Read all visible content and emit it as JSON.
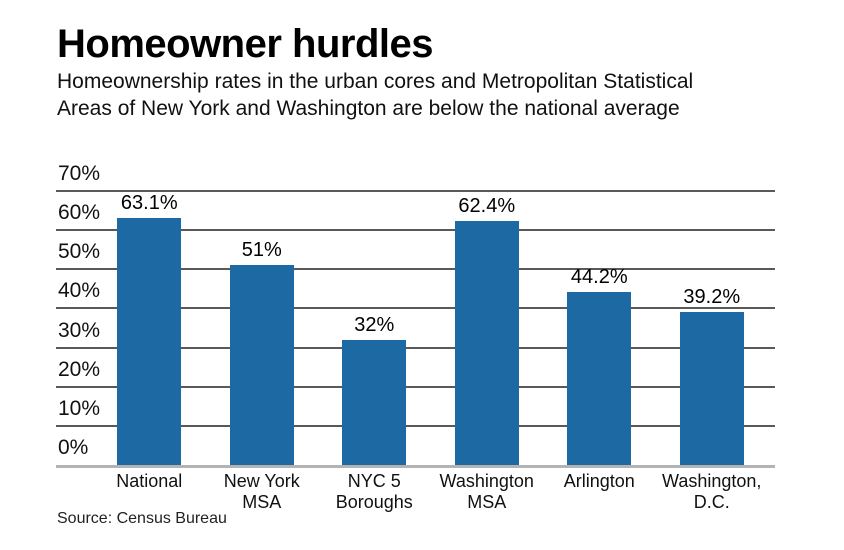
{
  "header": {
    "title": "Homeowner hurdles",
    "subtitle_line1": "Homeownership rates in the urban cores and Metropolitan Statistical",
    "subtitle_line2": "Areas of New York and Washington are below the national average"
  },
  "chart_data": {
    "type": "bar",
    "title": "Homeowner hurdles",
    "subtitle": "Homeownership rates in the urban cores and Metropolitan Statistical Areas of New York and Washington are below the national average",
    "categories": [
      "National",
      "New York MSA",
      "NYC 5 Boroughs",
      "Washington MSA",
      "Arlington",
      "Washington, D.C."
    ],
    "values": [
      63.1,
      51,
      32,
      62.4,
      44.2,
      39.2
    ],
    "value_labels": [
      "63.1%",
      "51%",
      "32%",
      "62.4%",
      "44.2%",
      "39.2%"
    ],
    "xlabel": "",
    "ylabel": "",
    "ylim": [
      0,
      70
    ],
    "y_tick_values": [
      70,
      60,
      50,
      40,
      30,
      20,
      10,
      0
    ],
    "y_tick_labels": [
      "70%",
      "60%",
      "50%",
      "40%",
      "30%",
      "20%",
      "10%",
      "0%"
    ],
    "grid": true,
    "legend": "none",
    "bar_color": "#1c69a3",
    "gridline_color": "#595959",
    "baseline_color": "#b3b3b3",
    "label_color": "#111111"
  },
  "footer": {
    "source": "Source: Census Bureau"
  }
}
